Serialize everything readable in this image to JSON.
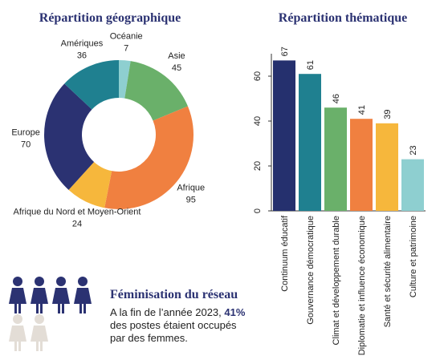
{
  "chart_data": [
    {
      "type": "pie",
      "title": "Répartition géographique",
      "categories": [
        "Océanie",
        "Asie",
        "Afrique",
        "Afrique du Nord et Moyen-Orient",
        "Europe",
        "Amériques"
      ],
      "values": [
        7,
        45,
        95,
        24,
        70,
        36
      ],
      "colors": [
        "#8ecfd0",
        "#6ab06a",
        "#f08040",
        "#f6b73c",
        "#2b3272",
        "#1f8090"
      ]
    },
    {
      "type": "bar",
      "title": "Répartition thématique",
      "categories": [
        "Continuum éducatif",
        "Gouvernance démocratique",
        "Climat et développement durable",
        "Diplomatie et influence économique",
        "Santé et sécurité alimentaire",
        "Culture et patrimoine"
      ],
      "values": [
        67,
        61,
        46,
        41,
        39,
        23
      ],
      "colors": [
        "#25306e",
        "#1f8090",
        "#6ab06a",
        "#f08040",
        "#f6b73c",
        "#8ecfd0"
      ],
      "ylim": [
        0,
        70
      ],
      "yticks": [
        0,
        20,
        40,
        60
      ]
    }
  ],
  "feminisation": {
    "title": "Féminisation du réseau",
    "line1": "A la fin de l’année 2023,",
    "highlight": "41%",
    "line2": "des postes étaient occupés",
    "line3": "par des femmes."
  }
}
